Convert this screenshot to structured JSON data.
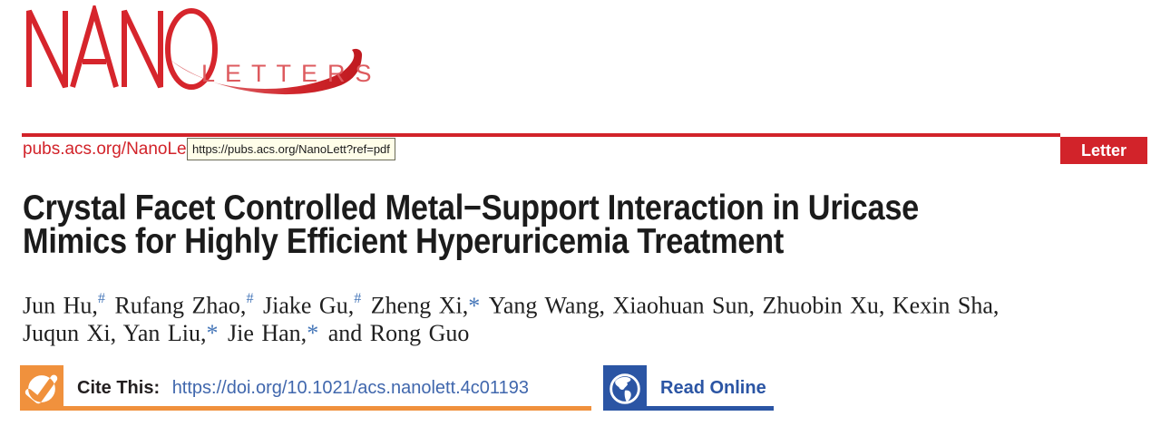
{
  "journal": {
    "logo_primary": "NANO",
    "logo_secondary": "LETTERS",
    "url_label": "pubs.acs.org/NanoLett",
    "tooltip_url": "https://pubs.acs.org/NanoLett?ref=pdf",
    "article_type_badge": "Letter"
  },
  "article": {
    "title_line1": "Crystal Facet Controlled Metal−Support Interaction in Uricase",
    "title_line2": "Mimics for Highly Efficient Hyperuricemia Treatment",
    "authors_line1": [
      {
        "text": "Jun Hu,",
        "marker": "#"
      },
      {
        "text": " Rufang Zhao,",
        "marker": "#"
      },
      {
        "text": " Jiake Gu,",
        "marker": "#"
      },
      {
        "text": " Zheng Xi,",
        "marker": "*"
      },
      {
        "text": " Yang Wang, Xiaohuan Sun, Zhuobin Xu, Kexin Sha,",
        "marker": null
      }
    ],
    "authors_line2": [
      {
        "text": "Juqun Xi, Yan Liu,",
        "marker": "*"
      },
      {
        "text": " Jie Han,",
        "marker": "*"
      },
      {
        "text": " and Rong Guo",
        "marker": null
      }
    ]
  },
  "cite": {
    "label": "Cite This:",
    "doi_url": "https://doi.org/10.1021/acs.nanolett.4c01193"
  },
  "read_online": {
    "label": "Read Online"
  },
  "colors": {
    "acs_red": "#d2232a",
    "logo_red": "#d6252c",
    "logo_letters_red": "#dd5a5e",
    "swoosh_light": "#e58a8d",
    "swoosh_dark": "#c01a20",
    "orange": "#f0913d",
    "blue": "#2b55a4",
    "link_blue": "#4067ad",
    "marker_blue": "#4576b8",
    "title_color": "#1b1b1b",
    "tooltip_bg": "#fffee9",
    "tooltip_border": "#6b6b57"
  }
}
